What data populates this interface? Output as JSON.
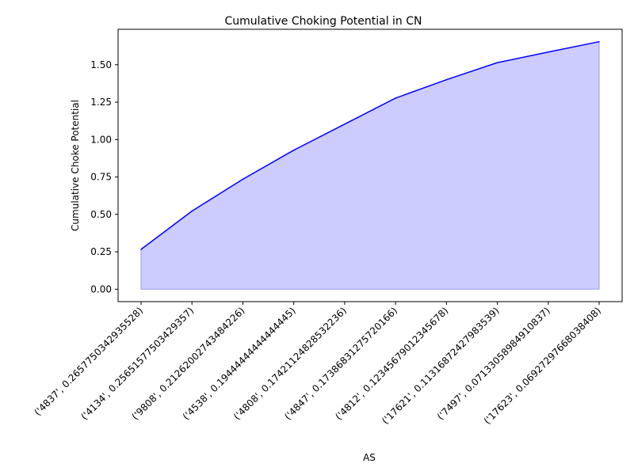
{
  "chart_data": {
    "type": "area",
    "title": "Cumulative Choking Potential in CN",
    "xlabel": "AS",
    "ylabel": "Cumulative Choke Potential",
    "categories": [
      "('4837', 0.2657750342935528)",
      "('4134', 0.2565157750342935​7)",
      "('9808', 0.2126200274348422​6)",
      "('4538', 0.1944444444444444​5)",
      "('4808', 0.1742112482853223​6)",
      "('4847', 0.1738683127572016​6)",
      "('4812', 0.1234567901234567​8)",
      "('17621', 0.1131687242798353​9)",
      "('7497', 0.0713305898491083​7)",
      "('17623', 0.0692729766803840​8)"
    ],
    "values": [
      0.266,
      0.522,
      0.735,
      0.929,
      1.103,
      1.277,
      1.4,
      1.514,
      1.585,
      1.654
    ],
    "yticks": [
      "0.00",
      "0.25",
      "0.50",
      "0.75",
      "1.00",
      "1.25",
      "1.50"
    ],
    "ylim": [
      -0.083,
      1.737
    ],
    "line_color": "#0000ff",
    "fill_color": "#ccccff",
    "grid": false,
    "legend": "none"
  }
}
